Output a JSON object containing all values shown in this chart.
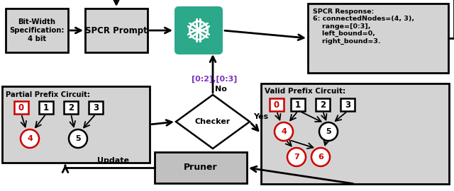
{
  "bg_color": "#ffffff",
  "box_bg": "#d3d3d3",
  "pruner_bg": "#c0c0c0",
  "box_border": "#000000",
  "teal_color": "#2ca88a",
  "red_color": "#cc0000",
  "purple_color": "#7b2fbe",
  "arrow_color": "#000000",
  "bit_width_text": "Bit-Width\nSpecification:\n4 bit",
  "spcr_prompt_text": "SPCR Prompt",
  "spcr_response_text": "SPCR Response:\n6: connectedNodes=(4, 3),\n    range=[0:3],\n    left_bound=0,\n    right_bound=3.",
  "partial_prefix_text": "Partial Prefix Circuit:",
  "valid_prefix_text": "Valid Prefix Circuit:",
  "checker_text": "Checker",
  "pruner_text": "Pruner",
  "update_text": "Update",
  "yes_text": "Yes",
  "no_text": "No",
  "range_text": "[0:2],[0:3]"
}
